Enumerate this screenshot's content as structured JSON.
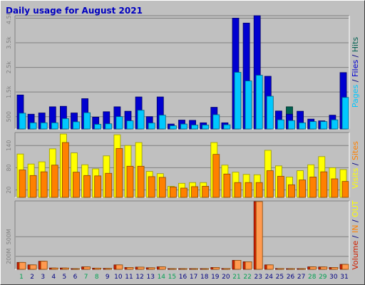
{
  "title": "Daily usage for August 2021",
  "colors": {
    "pages": "#00c8ff",
    "files": "#0000d0",
    "hits": "#006050",
    "visits": "#ffff00",
    "sites": "#ff8000",
    "volume": "#d02000",
    "in": "#ff8000",
    "out": "#ffff00",
    "weekend_label": "#00a050",
    "weekday_label": "#000080"
  },
  "chart_data": [
    {
      "type": "bar",
      "name": "pages-files-hits",
      "categories": [
        "1",
        "2",
        "3",
        "4",
        "5",
        "6",
        "7",
        "8",
        "9",
        "10",
        "11",
        "12",
        "13",
        "14",
        "15",
        "16",
        "17",
        "18",
        "19",
        "20",
        "21",
        "22",
        "23",
        "24",
        "25",
        "26",
        "27",
        "28",
        "29",
        "30",
        "31"
      ],
      "legend_parts": [
        {
          "text": "Pages",
          "color": "#00c8ff"
        },
        {
          "text": " / ",
          "color": "#000080"
        },
        {
          "text": "Files",
          "color": "#0000d0"
        },
        {
          "text": " / ",
          "color": "#000080"
        },
        {
          "text": "Hits",
          "color": "#006050"
        }
      ],
      "yticks": [
        "500",
        "1.5k",
        "2.5k",
        "3.5k",
        "4.5k"
      ],
      "ytick_values": [
        500,
        1500,
        2500,
        3500,
        4500
      ],
      "ylim": [
        0,
        4600
      ],
      "series": [
        {
          "name": "Hits",
          "values": [
            1380,
            600,
            650,
            900,
            920,
            650,
            1230,
            480,
            700,
            900,
            720,
            1300,
            500,
            1300,
            200,
            360,
            350,
            250,
            880,
            250,
            4500,
            4300,
            4600,
            2140,
            730,
            900,
            720,
            400,
            330,
            560,
            2290
          ]
        },
        {
          "name": "Files",
          "values": [
            1380,
            600,
            650,
            900,
            920,
            650,
            1230,
            480,
            700,
            900,
            720,
            1300,
            500,
            1300,
            200,
            360,
            350,
            250,
            880,
            250,
            4500,
            4300,
            4600,
            2140,
            730,
            600,
            720,
            400,
            330,
            560,
            2290
          ]
        },
        {
          "name": "Pages",
          "values": [
            640,
            250,
            250,
            250,
            420,
            290,
            660,
            190,
            210,
            500,
            330,
            760,
            240,
            560,
            130,
            200,
            160,
            160,
            580,
            170,
            2300,
            1950,
            2180,
            1330,
            370,
            340,
            250,
            300,
            300,
            370,
            1280
          ]
        }
      ]
    },
    {
      "type": "bar",
      "name": "visits-sites",
      "categories": [
        "1",
        "2",
        "3",
        "4",
        "5",
        "6",
        "7",
        "8",
        "9",
        "10",
        "11",
        "12",
        "13",
        "14",
        "15",
        "16",
        "17",
        "18",
        "19",
        "20",
        "21",
        "22",
        "23",
        "24",
        "25",
        "26",
        "27",
        "28",
        "29",
        "30",
        "31"
      ],
      "legend_parts": [
        {
          "text": "Visits",
          "color": "#ffff00"
        },
        {
          "text": " / ",
          "color": "#000080"
        },
        {
          "text": "Sites",
          "color": "#ff8000"
        }
      ],
      "yticks": [
        "20",
        "80",
        "140"
      ],
      "ytick_values": [
        20,
        80,
        140
      ],
      "ylim": [
        0,
        175
      ],
      "series": [
        {
          "name": "Visits",
          "values": [
            117,
            90,
            96,
            131,
            171,
            120,
            88,
            77,
            112,
            169,
            140,
            148,
            70,
            64,
            30,
            38,
            40,
            40,
            148,
            87,
            68,
            62,
            61,
            127,
            85,
            55,
            72,
            88,
            110,
            80,
            75
          ]
        },
        {
          "name": "Sites",
          "values": [
            74,
            59,
            69,
            87,
            148,
            68,
            59,
            58,
            65,
            132,
            84,
            84,
            56,
            54,
            28,
            25,
            29,
            30,
            116,
            63,
            40,
            40,
            40,
            72,
            57,
            34,
            47,
            55,
            69,
            50,
            43
          ]
        }
      ]
    },
    {
      "type": "bar",
      "name": "volume",
      "categories": [
        "1",
        "2",
        "3",
        "4",
        "5",
        "6",
        "7",
        "8",
        "9",
        "10",
        "11",
        "12",
        "13",
        "14",
        "15",
        "16",
        "17",
        "18",
        "19",
        "20",
        "21",
        "22",
        "23",
        "24",
        "25",
        "26",
        "27",
        "28",
        "29",
        "30",
        "31"
      ],
      "legend_parts": [
        {
          "text": "Volume",
          "color": "#d02000"
        },
        {
          "text": " / ",
          "color": "#000080"
        },
        {
          "text": "IN",
          "color": "#ff8000"
        },
        {
          "text": " / ",
          "color": "#000080"
        },
        {
          "text": "OUT",
          "color": "#ffff00"
        }
      ],
      "yticks": [
        "200M",
        "500M"
      ],
      "ytick_values": [
        200,
        500
      ],
      "ylim": [
        0,
        1050
      ],
      "series": [
        {
          "name": "Volume",
          "values": [
            106,
            68,
            124,
            20,
            20,
            10,
            38,
            18,
            14,
            68,
            28,
            34,
            24,
            38,
            10,
            10,
            10,
            10,
            28,
            12,
            138,
            116,
            1040,
            68,
            12,
            10,
            10,
            38,
            36,
            28,
            76
          ]
        },
        {
          "name": "IN",
          "values": [
            106,
            68,
            124,
            20,
            20,
            10,
            38,
            18,
            14,
            68,
            28,
            34,
            24,
            38,
            10,
            10,
            10,
            10,
            28,
            12,
            138,
            116,
            1040,
            68,
            12,
            10,
            10,
            38,
            36,
            28,
            76
          ]
        }
      ]
    }
  ],
  "x_labels": [
    {
      "text": "1",
      "weekend": true
    },
    {
      "text": "2",
      "weekend": false
    },
    {
      "text": "3",
      "weekend": false
    },
    {
      "text": "4",
      "weekend": false
    },
    {
      "text": "5",
      "weekend": false
    },
    {
      "text": "6",
      "weekend": false
    },
    {
      "text": "7",
      "weekend": true
    },
    {
      "text": "8",
      "weekend": true
    },
    {
      "text": "9",
      "weekend": false
    },
    {
      "text": "10",
      "weekend": false
    },
    {
      "text": "11",
      "weekend": false
    },
    {
      "text": "12",
      "weekend": false
    },
    {
      "text": "13",
      "weekend": false
    },
    {
      "text": "14",
      "weekend": true
    },
    {
      "text": "15",
      "weekend": true
    },
    {
      "text": "16",
      "weekend": false
    },
    {
      "text": "17",
      "weekend": false
    },
    {
      "text": "18",
      "weekend": false
    },
    {
      "text": "19",
      "weekend": false
    },
    {
      "text": "20",
      "weekend": false
    },
    {
      "text": "21",
      "weekend": true
    },
    {
      "text": "22",
      "weekend": true
    },
    {
      "text": "23",
      "weekend": false
    },
    {
      "text": "24",
      "weekend": false
    },
    {
      "text": "25",
      "weekend": false
    },
    {
      "text": "26",
      "weekend": false
    },
    {
      "text": "27",
      "weekend": false
    },
    {
      "text": "28",
      "weekend": true
    },
    {
      "text": "29",
      "weekend": true
    },
    {
      "text": "30",
      "weekend": false
    },
    {
      "text": "31",
      "weekend": false
    }
  ]
}
